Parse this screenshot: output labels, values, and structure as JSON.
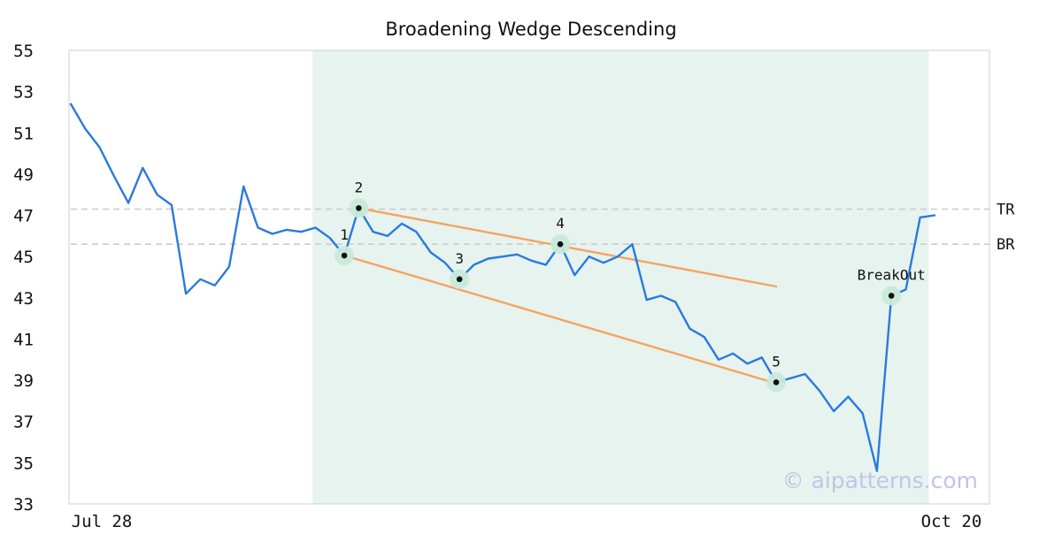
{
  "chart_data": {
    "type": "line",
    "title": "Broadening Wedge Descending",
    "watermark": "© aipatterns.com",
    "x_axis": {
      "tick_labels": [
        "Jul 28",
        "Oct 20"
      ]
    },
    "y_axis": {
      "ticks": [
        33,
        35,
        37,
        39,
        41,
        43,
        45,
        47,
        49,
        51,
        53,
        55
      ],
      "range": [
        33,
        55
      ]
    },
    "series": [
      {
        "name": "price",
        "color": "#2a7ade",
        "values": [
          52.4,
          51.2,
          50.3,
          48.9,
          47.6,
          49.3,
          48.0,
          47.5,
          43.2,
          43.9,
          43.6,
          44.5,
          48.4,
          46.4,
          46.1,
          46.3,
          46.2,
          46.4,
          45.9,
          45.05,
          47.35,
          46.2,
          46.0,
          46.6,
          46.2,
          45.2,
          44.7,
          43.9,
          44.6,
          44.9,
          45.0,
          45.1,
          44.8,
          44.6,
          45.6,
          44.1,
          45.0,
          44.7,
          45.0,
          45.6,
          42.9,
          43.1,
          42.8,
          41.5,
          41.1,
          40.0,
          40.3,
          39.8,
          40.1,
          38.9,
          39.1,
          39.3,
          38.5,
          37.5,
          38.2,
          37.4,
          34.6,
          43.1,
          43.4,
          46.9,
          47.0
        ]
      }
    ],
    "shaded_region": {
      "start_index": 16.8,
      "end_index": 59.6,
      "color": "#e7f3ee"
    },
    "trendlines": [
      {
        "name": "upper-wedge-line",
        "from_index": 20,
        "from_value": 47.35,
        "to_index": 49,
        "to_value": 43.55
      },
      {
        "name": "lower-wedge-line",
        "from_index": 19,
        "from_value": 45.05,
        "to_index": 49,
        "to_value": 38.85
      }
    ],
    "hlines": [
      {
        "label": "TR",
        "value": 47.3
      },
      {
        "label": "BR",
        "value": 45.6
      }
    ],
    "markers": [
      {
        "label": "1",
        "index": 19,
        "value": 45.05
      },
      {
        "label": "2",
        "index": 20,
        "value": 47.35
      },
      {
        "label": "3",
        "index": 27,
        "value": 43.9
      },
      {
        "label": "4",
        "index": 34,
        "value": 45.6
      },
      {
        "label": "5",
        "index": 49,
        "value": 38.9
      },
      {
        "label": "BreakOut",
        "index": 57,
        "value": 43.1
      }
    ],
    "colors": {
      "price": "#2a7ade",
      "trendline": "#f4a460",
      "region": "#e7f3ee",
      "marker_halo": "#c9e9d9",
      "marker_dot": "#111111",
      "dashed": "#cccccc",
      "watermark": "#c6c2ea"
    }
  }
}
